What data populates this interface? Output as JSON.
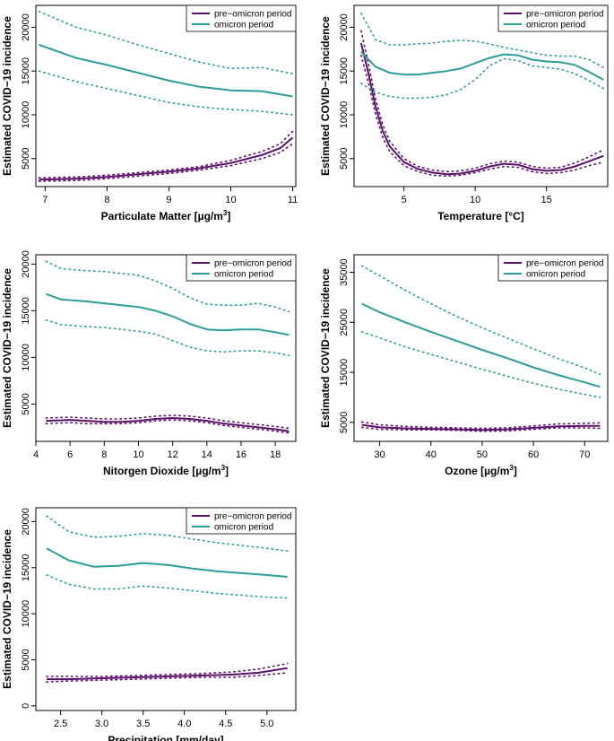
{
  "colors": {
    "pre": "#5B0F6B",
    "omicron": "#2A9D9A"
  },
  "legend": {
    "pre": "pre−omicron period",
    "omicron": "omicron period"
  },
  "chart_data": [
    {
      "type": "line",
      "xlabel": "Particulate Matter [µg/m",
      "xlabel_sup": "3",
      "xlabel_end": "]",
      "ylabel": "Estimated COVID−19 incidence",
      "xlim": [
        6.85,
        11.05
      ],
      "ylim": [
        1800,
        22500
      ],
      "xticks": [
        "7",
        "8",
        "9",
        "10",
        "11"
      ],
      "yticks": [
        "5000",
        "10000",
        "15000",
        "20000"
      ],
      "series": [
        {
          "name": "pre-omicron",
          "x": [
            6.9,
            7.5,
            8,
            8.5,
            9,
            9.5,
            10,
            10.5,
            10.8,
            11
          ],
          "y": [
            2600,
            2700,
            2900,
            3200,
            3500,
            3900,
            4500,
            5400,
            6200,
            7400
          ],
          "lower": [
            2400,
            2500,
            2700,
            3000,
            3300,
            3700,
            4200,
            5000,
            5700,
            6700
          ],
          "upper": [
            2800,
            2900,
            3100,
            3400,
            3700,
            4100,
            4800,
            5800,
            6700,
            8100
          ]
        },
        {
          "name": "omicron",
          "x": [
            6.9,
            7.5,
            8,
            8.5,
            9,
            9.5,
            10,
            10.5,
            11
          ],
          "y": [
            18000,
            16500,
            15700,
            14800,
            13900,
            13200,
            12800,
            12700,
            12100
          ],
          "lower": [
            15000,
            13800,
            13000,
            12200,
            11400,
            10900,
            10600,
            10400,
            10000
          ],
          "upper": [
            21800,
            20000,
            19100,
            18000,
            17000,
            16000,
            15300,
            15400,
            14700
          ]
        }
      ]
    },
    {
      "type": "line",
      "xlabel": "Temperature [°C]",
      "xlabel_sup": "",
      "xlabel_end": "",
      "ylabel": "Estimated COVID−19 incidence",
      "xlim": [
        1.5,
        19.3
      ],
      "ylim": [
        1800,
        22500
      ],
      "xticks": [
        "5",
        "10",
        "15"
      ],
      "yticks": [
        "5000",
        "10000",
        "15000",
        "20000"
      ],
      "series": [
        {
          "name": "pre-omicron",
          "x": [
            2,
            2.5,
            3,
            3.5,
            4,
            5,
            6,
            7,
            8,
            9,
            10,
            11,
            12,
            13,
            14,
            15,
            16,
            17,
            18,
            19
          ],
          "y": [
            18200,
            14800,
            11000,
            8200,
            6400,
            4600,
            3800,
            3400,
            3200,
            3300,
            3600,
            4100,
            4400,
            4300,
            3800,
            3600,
            3700,
            4100,
            4700,
            5300
          ],
          "lower": [
            16800,
            13700,
            10100,
            7500,
            5800,
            4200,
            3500,
            3100,
            3000,
            3100,
            3400,
            3800,
            4100,
            4000,
            3500,
            3300,
            3400,
            3700,
            4200,
            4600
          ],
          "upper": [
            19600,
            15900,
            11900,
            8900,
            7000,
            5000,
            4100,
            3700,
            3500,
            3600,
            3900,
            4400,
            4700,
            4600,
            4100,
            3900,
            4000,
            4500,
            5200,
            6000
          ]
        },
        {
          "name": "omicron",
          "x": [
            2,
            3,
            4,
            5,
            6,
            7,
            8,
            9,
            10,
            11,
            12,
            13,
            14,
            15,
            16,
            17,
            18,
            19
          ],
          "y": [
            17200,
            15500,
            14800,
            14600,
            14600,
            14800,
            15000,
            15300,
            15900,
            16500,
            16900,
            16800,
            16300,
            16100,
            16000,
            15700,
            14900,
            14000
          ],
          "lower": [
            13600,
            12600,
            12100,
            11900,
            11900,
            12000,
            12300,
            12900,
            14000,
            15600,
            16400,
            16200,
            15600,
            15400,
            15200,
            14700,
            13900,
            13000
          ],
          "upper": [
            21600,
            18600,
            18000,
            18000,
            18100,
            18200,
            18400,
            18500,
            18400,
            18100,
            17700,
            17400,
            17100,
            16800,
            16700,
            16700,
            16300,
            15400
          ]
        }
      ]
    },
    {
      "type": "line",
      "xlabel": "Nitorgen Dioxide [µg/m",
      "xlabel_sup": "3",
      "xlabel_end": "]",
      "ylabel": "Estimated COVID−19 incidence",
      "xlim": [
        4.0,
        19.2
      ],
      "ylim": [
        1000,
        21000
      ],
      "xticks": [
        "4",
        "6",
        "8",
        "10",
        "12",
        "14",
        "16",
        "18"
      ],
      "yticks": [
        "5000",
        "10000",
        "15000",
        "20000"
      ],
      "series": [
        {
          "name": "pre-omicron",
          "x": [
            4.6,
            6,
            7,
            8,
            9,
            10,
            11,
            12,
            13,
            14,
            15,
            16,
            17,
            18,
            18.8
          ],
          "y": [
            3200,
            3300,
            3200,
            3100,
            3100,
            3200,
            3400,
            3500,
            3400,
            3200,
            2900,
            2700,
            2500,
            2300,
            2100
          ],
          "lower": [
            2900,
            3000,
            2900,
            2900,
            2900,
            3000,
            3200,
            3300,
            3200,
            3000,
            2700,
            2500,
            2300,
            2100,
            1900
          ],
          "upper": [
            3500,
            3600,
            3500,
            3400,
            3400,
            3500,
            3700,
            3800,
            3700,
            3500,
            3200,
            3000,
            2800,
            2600,
            2400
          ]
        },
        {
          "name": "omicron",
          "x": [
            4.6,
            5.5,
            7,
            8,
            9,
            10,
            11,
            12,
            13,
            14,
            15,
            16,
            17,
            18,
            18.8
          ],
          "y": [
            16800,
            16200,
            16000,
            15800,
            15600,
            15400,
            15000,
            14400,
            13600,
            13000,
            12900,
            13000,
            13000,
            12700,
            12400
          ],
          "lower": [
            14000,
            13500,
            13300,
            13200,
            13000,
            12800,
            12500,
            11800,
            11100,
            10700,
            10600,
            10700,
            10700,
            10500,
            10200
          ],
          "upper": [
            20300,
            19500,
            19300,
            19200,
            19000,
            18800,
            18200,
            17400,
            16400,
            15700,
            15600,
            15600,
            15800,
            15400,
            14900
          ]
        }
      ]
    },
    {
      "type": "line",
      "xlabel": "Ozone [µg/m",
      "xlabel_sup": "3",
      "xlabel_end": "]",
      "ylabel": "Estimated COVID−19 incidence",
      "xlim": [
        25.0,
        74.5
      ],
      "ylim": [
        1200,
        38500
      ],
      "xticks": [
        "30",
        "40",
        "50",
        "60",
        "70"
      ],
      "yticks": [
        "5000",
        "15000",
        "25000",
        "35000"
      ],
      "series": [
        {
          "name": "pre-omicron",
          "x": [
            26.5,
            30,
            35,
            40,
            45,
            50,
            55,
            60,
            65,
            70,
            73
          ],
          "y": [
            4500,
            4000,
            3800,
            3700,
            3600,
            3500,
            3600,
            3900,
            4200,
            4300,
            4300
          ],
          "lower": [
            4000,
            3600,
            3500,
            3500,
            3400,
            3200,
            3300,
            3600,
            3900,
            3900,
            3800
          ],
          "upper": [
            5100,
            4500,
            4200,
            4000,
            3900,
            3800,
            3900,
            4300,
            4700,
            4800,
            4900
          ]
        },
        {
          "name": "omicron",
          "x": [
            26.5,
            30,
            35,
            40,
            45,
            50,
            55,
            60,
            65,
            70,
            73
          ],
          "y": [
            28700,
            27000,
            25000,
            23100,
            21300,
            19500,
            17800,
            16000,
            14400,
            13000,
            12100
          ],
          "lower": [
            23100,
            21900,
            20100,
            18600,
            17100,
            15600,
            14200,
            12800,
            11600,
            10600,
            10000
          ],
          "upper": [
            36300,
            34300,
            31400,
            28700,
            26200,
            23900,
            21800,
            19700,
            17700,
            15900,
            14600
          ]
        }
      ]
    },
    {
      "type": "line",
      "xlabel": "Precipitation [mm/day]",
      "xlabel_sup": "",
      "xlabel_end": "",
      "ylabel": "Estimated COVID−19 incidence",
      "xlim": [
        2.2,
        5.35
      ],
      "ylim": [
        -500,
        21500
      ],
      "xticks": [
        "2.5",
        "3.0",
        "3.5",
        "4.0",
        "4.5",
        "5.0"
      ],
      "yticks": [
        "0",
        "5000",
        "10000",
        "15000",
        "20000"
      ],
      "series": [
        {
          "name": "pre-omicron",
          "x": [
            2.33,
            2.6,
            3,
            3.4,
            3.8,
            4.2,
            4.6,
            4.9,
            5.25
          ],
          "y": [
            2900,
            2900,
            3000,
            3100,
            3200,
            3300,
            3400,
            3600,
            4100
          ],
          "lower": [
            2600,
            2700,
            2800,
            2900,
            3000,
            3100,
            3100,
            3300,
            3600
          ],
          "upper": [
            3200,
            3200,
            3200,
            3300,
            3400,
            3500,
            3700,
            4000,
            4600
          ]
        },
        {
          "name": "omicron",
          "x": [
            2.33,
            2.6,
            2.9,
            3.2,
            3.5,
            3.8,
            4.1,
            4.4,
            4.7,
            5,
            5.25
          ],
          "y": [
            17100,
            15800,
            15100,
            15200,
            15500,
            15300,
            14900,
            14600,
            14400,
            14200,
            14000
          ],
          "lower": [
            14200,
            13200,
            12700,
            12700,
            13000,
            12800,
            12500,
            12200,
            12000,
            11800,
            11700
          ],
          "upper": [
            20600,
            18900,
            18300,
            18400,
            18700,
            18500,
            18100,
            17700,
            17400,
            17100,
            16800
          ]
        }
      ]
    }
  ]
}
